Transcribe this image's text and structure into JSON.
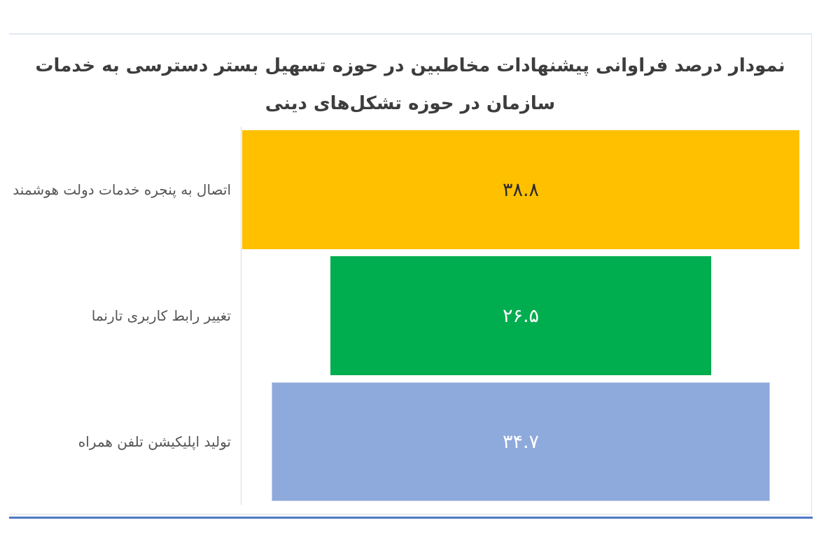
{
  "chart": {
    "title_line1": "نمودار درصد فراوانی پیشنهادات مخاطبین در حوزه تسهیل بستر دسترسی به خدمات",
    "title_line2": "سازمان در حوزه تشکل‌های دینی"
  },
  "chart_data": {
    "type": "bar",
    "orientation": "horizontal",
    "bar_alignment": "center",
    "title": "نمودار درصد فراوانی پیشنهادات مخاطبین در حوزه تسهیل بستر دسترسی به خدمات سازمان در حوزه تشکل‌های دینی",
    "categories": [
      "اتصال به پنجره خدمات دولت هوشمند",
      "تغییر رابط کاربری تارنما",
      "تولید اپلیکیشن تلفن همراه"
    ],
    "values": [
      38.8,
      26.5,
      34.7
    ],
    "value_labels": [
      "۳۸.۸",
      "۲۶.۵",
      "۳۴.۷"
    ],
    "bar_colors": [
      "#FFC000",
      "#00AD4F",
      "#8EA9DB"
    ],
    "bar_border_colors": [
      "none",
      "none",
      "#C9D4EE"
    ],
    "value_text_colors": [
      "#2B2B2B",
      "#FFFFFF",
      "#FFFFFF"
    ],
    "xlim": [
      0,
      40
    ],
    "unit": "percent",
    "grid": false,
    "legend": false
  },
  "colors": {
    "title_text": "#3D3D3D",
    "label_text": "#545454",
    "axis_line": "#D9D9D9",
    "container_border_top": "#C5D3E8",
    "container_border_right": "#E3E3E3",
    "container_border_bottom": "#E0E0E0",
    "bottom_rule": "#4E78C6",
    "background": "#FFFFFF"
  }
}
